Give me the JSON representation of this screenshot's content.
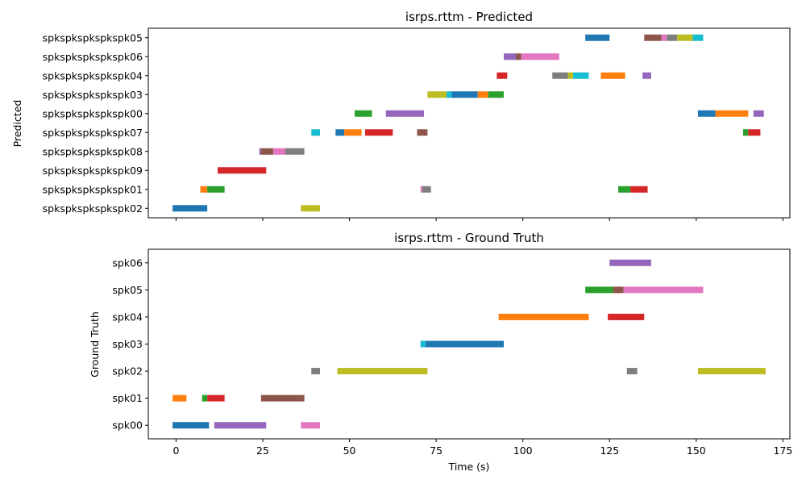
{
  "chart_data": [
    {
      "type": "timeline",
      "title": "isrps.rttm - Predicted",
      "xlabel": "",
      "ylabel": "Predicted",
      "xlim": [
        -8,
        177
      ],
      "xticks": [
        0,
        25,
        50,
        75,
        100,
        125,
        150,
        175
      ],
      "show_xtick_labels": false,
      "speakers": [
        "spkspkspkspkspk02",
        "spkspkspkspkspk01",
        "spkspkspkspkspk09",
        "spkspkspkspkspk08",
        "spkspkspkspkspk07",
        "spkspkspkspkspk00",
        "spkspkspkspkspk03",
        "spkspkspkspkspk04",
        "spkspkspkspkspk06",
        "spkspkspkspkspk05"
      ],
      "segments": [
        {
          "speaker": "spkspkspkspkspk05",
          "start": 118,
          "end": 125,
          "color": "#1f77b4"
        },
        {
          "speaker": "spkspkspkspkspk05",
          "start": 135,
          "end": 140,
          "color": "#8c564b"
        },
        {
          "speaker": "spkspkspkspkspk05",
          "start": 140,
          "end": 141.5,
          "color": "#e377c2"
        },
        {
          "speaker": "spkspkspkspkspk05",
          "start": 141.5,
          "end": 144.5,
          "color": "#7f7f7f"
        },
        {
          "speaker": "spkspkspkspkspk05",
          "start": 144.5,
          "end": 149,
          "color": "#bcbd22"
        },
        {
          "speaker": "spkspkspkspkspk05",
          "start": 149,
          "end": 152,
          "color": "#17becf"
        },
        {
          "speaker": "spkspkspkspkspk06",
          "start": 94.5,
          "end": 98,
          "color": "#9467bd"
        },
        {
          "speaker": "spkspkspkspkspk06",
          "start": 98,
          "end": 99.5,
          "color": "#8c564b"
        },
        {
          "speaker": "spkspkspkspkspk06",
          "start": 99.5,
          "end": 110.5,
          "color": "#e377c2"
        },
        {
          "speaker": "spkspkspkspkspk04",
          "start": 92.5,
          "end": 95.5,
          "color": "#d62728"
        },
        {
          "speaker": "spkspkspkspkspk04",
          "start": 108.5,
          "end": 113,
          "color": "#7f7f7f"
        },
        {
          "speaker": "spkspkspkspkspk04",
          "start": 113,
          "end": 114.5,
          "color": "#bcbd22"
        },
        {
          "speaker": "spkspkspkspkspk04",
          "start": 114.5,
          "end": 119,
          "color": "#17becf"
        },
        {
          "speaker": "spkspkspkspkspk04",
          "start": 122.5,
          "end": 129.5,
          "color": "#ff7f0e"
        },
        {
          "speaker": "spkspkspkspkspk04",
          "start": 134.5,
          "end": 137,
          "color": "#9467bd"
        },
        {
          "speaker": "spkspkspkspkspk03",
          "start": 72.5,
          "end": 78,
          "color": "#bcbd22"
        },
        {
          "speaker": "spkspkspkspkspk03",
          "start": 78,
          "end": 79.5,
          "color": "#17becf"
        },
        {
          "speaker": "spkspkspkspkspk03",
          "start": 79.5,
          "end": 87,
          "color": "#1f77b4"
        },
        {
          "speaker": "spkspkspkspkspk03",
          "start": 87,
          "end": 90,
          "color": "#ff7f0e"
        },
        {
          "speaker": "spkspkspkspkspk03",
          "start": 90,
          "end": 94.5,
          "color": "#2ca02c"
        },
        {
          "speaker": "spkspkspkspkspk00",
          "start": 51.5,
          "end": 56.5,
          "color": "#2ca02c"
        },
        {
          "speaker": "spkspkspkspkspk00",
          "start": 60.5,
          "end": 71.5,
          "color": "#9467bd"
        },
        {
          "speaker": "spkspkspkspkspk00",
          "start": 150.5,
          "end": 155.5,
          "color": "#1f77b4"
        },
        {
          "speaker": "spkspkspkspkspk00",
          "start": 155.5,
          "end": 165,
          "color": "#ff7f0e"
        },
        {
          "speaker": "spkspkspkspkspk00",
          "start": 166.5,
          "end": 169.5,
          "color": "#9467bd"
        },
        {
          "speaker": "spkspkspkspkspk07",
          "start": 39,
          "end": 41.5,
          "color": "#17becf"
        },
        {
          "speaker": "spkspkspkspkspk07",
          "start": 46,
          "end": 48.5,
          "color": "#1f77b4"
        },
        {
          "speaker": "spkspkspkspkspk07",
          "start": 48.5,
          "end": 53.5,
          "color": "#ff7f0e"
        },
        {
          "speaker": "spkspkspkspkspk07",
          "start": 54.5,
          "end": 62.5,
          "color": "#d62728"
        },
        {
          "speaker": "spkspkspkspkspk07",
          "start": 69.5,
          "end": 72.5,
          "color": "#8c564b"
        },
        {
          "speaker": "spkspkspkspkspk07",
          "start": 163.5,
          "end": 165,
          "color": "#2ca02c"
        },
        {
          "speaker": "spkspkspkspkspk07",
          "start": 165,
          "end": 168.5,
          "color": "#d62728"
        },
        {
          "speaker": "spkspkspkspkspk08",
          "start": 24,
          "end": 24.5,
          "color": "#9467bd"
        },
        {
          "speaker": "spkspkspkspkspk08",
          "start": 24.5,
          "end": 28,
          "color": "#8c564b"
        },
        {
          "speaker": "spkspkspkspkspk08",
          "start": 28,
          "end": 31.5,
          "color": "#e377c2"
        },
        {
          "speaker": "spkspkspkspkspk08",
          "start": 31.5,
          "end": 37,
          "color": "#7f7f7f"
        },
        {
          "speaker": "spkspkspkspkspk09",
          "start": 12,
          "end": 26,
          "color": "#d62728"
        },
        {
          "speaker": "spkspkspkspkspk01",
          "start": 7,
          "end": 9,
          "color": "#ff7f0e"
        },
        {
          "speaker": "spkspkspkspkspk01",
          "start": 9,
          "end": 14,
          "color": "#2ca02c"
        },
        {
          "speaker": "spkspkspkspkspk01",
          "start": 70.5,
          "end": 71,
          "color": "#e377c2"
        },
        {
          "speaker": "spkspkspkspkspk01",
          "start": 71,
          "end": 73.5,
          "color": "#7f7f7f"
        },
        {
          "speaker": "spkspkspkspkspk01",
          "start": 127.5,
          "end": 131,
          "color": "#2ca02c"
        },
        {
          "speaker": "spkspkspkspkspk01",
          "start": 131,
          "end": 136,
          "color": "#d62728"
        },
        {
          "speaker": "spkspkspkspkspk02",
          "start": -1,
          "end": 9,
          "color": "#1f77b4"
        },
        {
          "speaker": "spkspkspkspkspk02",
          "start": 36,
          "end": 41.5,
          "color": "#bcbd22"
        }
      ]
    },
    {
      "type": "timeline",
      "title": "isrps.rttm - Ground Truth",
      "xlabel": "Time (s)",
      "ylabel": "Ground Truth",
      "xlim": [
        -8,
        177
      ],
      "xticks": [
        0,
        25,
        50,
        75,
        100,
        125,
        150,
        175
      ],
      "show_xtick_labels": true,
      "speakers": [
        "spk00",
        "spk01",
        "spk02",
        "spk03",
        "spk04",
        "spk05",
        "spk06"
      ],
      "segments": [
        {
          "speaker": "spk06",
          "start": 125,
          "end": 137,
          "color": "#9467bd"
        },
        {
          "speaker": "spk05",
          "start": 118,
          "end": 126,
          "color": "#2ca02c"
        },
        {
          "speaker": "spk05",
          "start": 126,
          "end": 129,
          "color": "#8c564b"
        },
        {
          "speaker": "spk05",
          "start": 129,
          "end": 152,
          "color": "#e377c2"
        },
        {
          "speaker": "spk04",
          "start": 93,
          "end": 119,
          "color": "#ff7f0e"
        },
        {
          "speaker": "spk04",
          "start": 124.5,
          "end": 135,
          "color": "#d62728"
        },
        {
          "speaker": "spk03",
          "start": 70.5,
          "end": 72,
          "color": "#17becf"
        },
        {
          "speaker": "spk03",
          "start": 72,
          "end": 94.5,
          "color": "#1f77b4"
        },
        {
          "speaker": "spk02",
          "start": 39,
          "end": 41.5,
          "color": "#7f7f7f"
        },
        {
          "speaker": "spk02",
          "start": 46.5,
          "end": 72.5,
          "color": "#bcbd22"
        },
        {
          "speaker": "spk02",
          "start": 130,
          "end": 133,
          "color": "#7f7f7f"
        },
        {
          "speaker": "spk02",
          "start": 150.5,
          "end": 170,
          "color": "#bcbd22"
        },
        {
          "speaker": "spk01",
          "start": -1,
          "end": 3,
          "color": "#ff7f0e"
        },
        {
          "speaker": "spk01",
          "start": 7.5,
          "end": 9,
          "color": "#2ca02c"
        },
        {
          "speaker": "spk01",
          "start": 9,
          "end": 14,
          "color": "#d62728"
        },
        {
          "speaker": "spk01",
          "start": 24.5,
          "end": 37,
          "color": "#8c564b"
        },
        {
          "speaker": "spk00",
          "start": -1,
          "end": 9.5,
          "color": "#1f77b4"
        },
        {
          "speaker": "spk00",
          "start": 11,
          "end": 26,
          "color": "#9467bd"
        },
        {
          "speaker": "spk00",
          "start": 36,
          "end": 41.5,
          "color": "#e377c2"
        }
      ]
    }
  ]
}
